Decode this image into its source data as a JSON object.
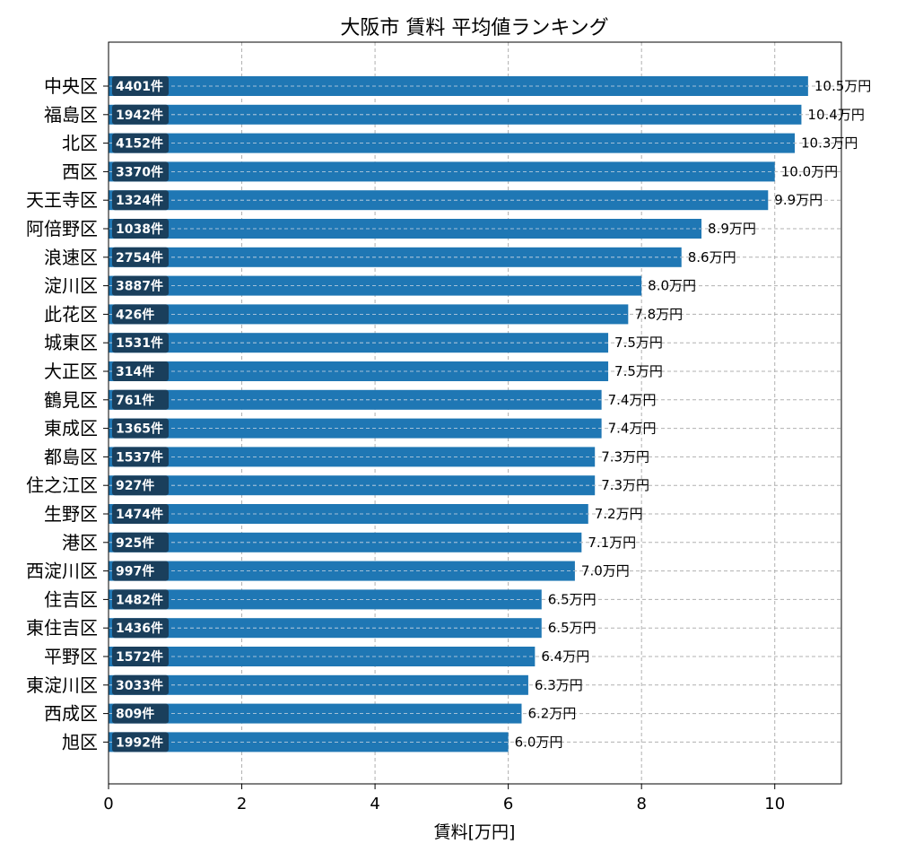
{
  "chart_data": {
    "type": "bar",
    "orientation": "horizontal",
    "title": "大阪市 賃料 平均値ランキング",
    "xlabel": "賃料[万円]",
    "xlim": [
      0,
      11
    ],
    "xticks": [
      "0",
      "2",
      "4",
      "6",
      "8",
      "10"
    ],
    "grid": true,
    "bar_color": "#1f77b4",
    "count_box_color": "#1a3f5c",
    "categories": [
      "中央区",
      "福島区",
      "北区",
      "西区",
      "天王寺区",
      "阿倍野区",
      "浪速区",
      "淀川区",
      "此花区",
      "城東区",
      "大正区",
      "鶴見区",
      "東成区",
      "都島区",
      "住之江区",
      "生野区",
      "港区",
      "西淀川区",
      "住吉区",
      "東住吉区",
      "平野区",
      "東淀川区",
      "西成区",
      "旭区"
    ],
    "values": [
      10.5,
      10.4,
      10.3,
      10.0,
      9.9,
      8.9,
      8.6,
      8.0,
      7.8,
      7.5,
      7.5,
      7.4,
      7.4,
      7.3,
      7.3,
      7.2,
      7.1,
      7.0,
      6.5,
      6.5,
      6.4,
      6.3,
      6.2,
      6.0
    ],
    "value_labels": [
      "10.5万円",
      "10.4万円",
      "10.3万円",
      "10.0万円",
      "9.9万円",
      "8.9万円",
      "8.6万円",
      "8.0万円",
      "7.8万円",
      "7.5万円",
      "7.5万円",
      "7.4万円",
      "7.4万円",
      "7.3万円",
      "7.3万円",
      "7.2万円",
      "7.1万円",
      "7.0万円",
      "6.5万円",
      "6.5万円",
      "6.4万円",
      "6.3万円",
      "6.2万円",
      "6.0万円"
    ],
    "counts": [
      "4401件",
      "1942件",
      "4152件",
      "3370件",
      "1324件",
      "1038件",
      "2754件",
      "3887件",
      "426件",
      "1531件",
      "314件",
      "761件",
      "1365件",
      "1537件",
      "927件",
      "1474件",
      "925件",
      "997件",
      "1482件",
      "1436件",
      "1572件",
      "3033件",
      "809件",
      "1992件"
    ]
  }
}
